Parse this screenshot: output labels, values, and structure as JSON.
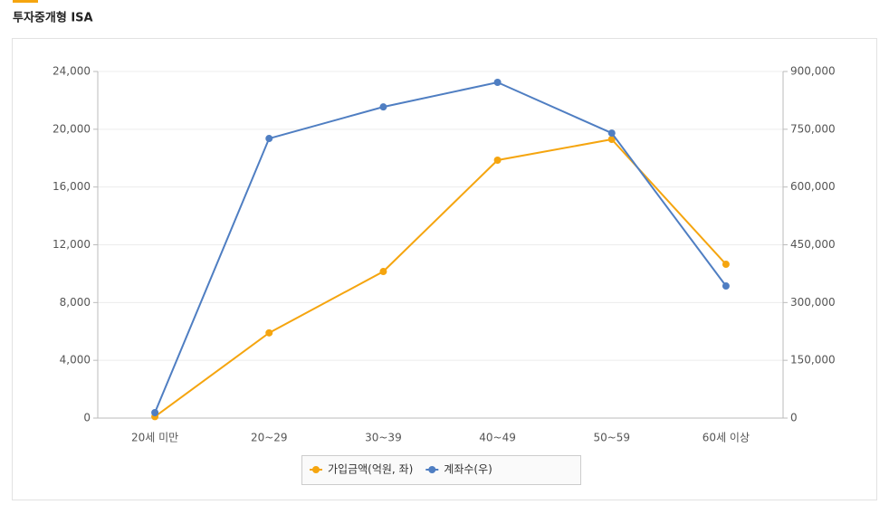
{
  "chart_data": {
    "type": "line",
    "title": "투자중개형 ISA",
    "categories": [
      "20세 미만",
      "20~29",
      "30~39",
      "40~49",
      "50~59",
      "60세 이상"
    ],
    "series": [
      {
        "name": "가입금액(억원, 좌)",
        "color": "#f5a50f",
        "values": [
          100,
          5900,
          10150,
          17860,
          19300,
          10650
        ]
      },
      {
        "name": "계좌수(우)",
        "color": "#4f7ec2",
        "axis": "y2",
        "values": [
          14100,
          726000,
          808000,
          871800,
          740000,
          343000
        ]
      }
    ],
    "ylim": [
      0,
      24000
    ],
    "yticks": [
      0,
      {
        "value": 4000,
        "label": "4,000"
      },
      {
        "value": 8000,
        "label": "8,000"
      },
      {
        "value": 12000,
        "label": "12,000"
      },
      {
        "value": 16000,
        "label": "16,000"
      },
      {
        "value": 20000,
        "label": "20,000"
      },
      {
        "value": 24000,
        "label": "24,000"
      }
    ],
    "y2lim": [
      0,
      900000
    ],
    "y2ticks": [
      0,
      {
        "value": 150000,
        "label": "150,000"
      },
      {
        "value": 300000,
        "label": "300,000"
      },
      {
        "value": 450000,
        "label": "450,000"
      },
      {
        "value": 600000,
        "label": "600,000"
      },
      {
        "value": 750000,
        "label": "750,000"
      },
      {
        "value": 900000,
        "label": "900,000"
      }
    ],
    "grid": true,
    "legend": "bottom"
  }
}
